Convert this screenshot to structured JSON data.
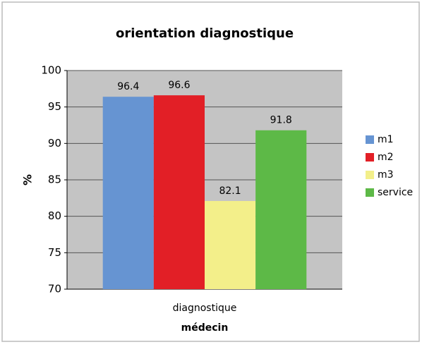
{
  "chart_data": {
    "type": "bar",
    "title": "orientation diagnostique",
    "categories": [
      "diagnostique"
    ],
    "series": [
      {
        "name": "m1",
        "color": "#6694d2",
        "values": [
          96.4
        ]
      },
      {
        "name": "m2",
        "color": "#e21f26",
        "values": [
          96.6
        ]
      },
      {
        "name": "m3",
        "color": "#f3ef8a",
        "values": [
          82.1
        ]
      },
      {
        "name": "service",
        "color": "#5db947",
        "values": [
          91.8
        ]
      }
    ],
    "xlabel": "médecin",
    "ylabel": "%",
    "ylim": [
      70,
      100
    ],
    "yticks": [
      70,
      75,
      80,
      85,
      90,
      95,
      100
    ],
    "grid": true,
    "legend": "right"
  }
}
